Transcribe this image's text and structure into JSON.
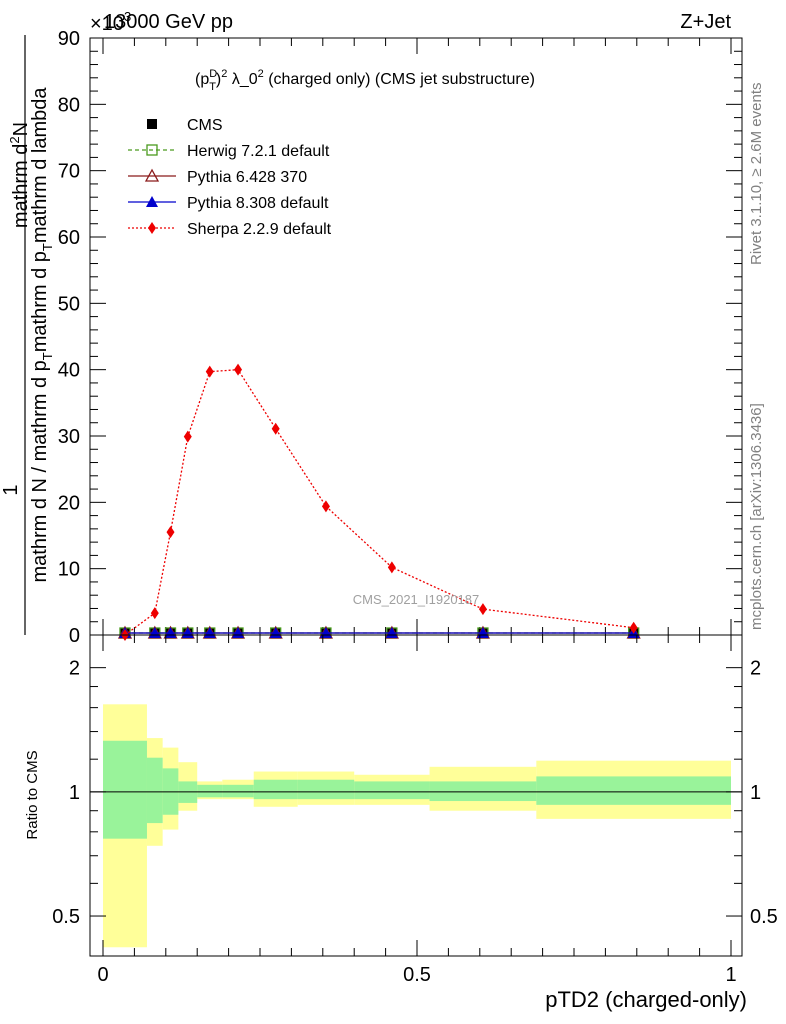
{
  "header": {
    "energy_label": "13000 GeV pp",
    "process_label": "Z+Jet",
    "exponent_label": "×10",
    "exponent_value": "3"
  },
  "main_panel": {
    "title_prefix": "(p",
    "title_sup_d": "D",
    "title_sub_t": "T",
    "title_suffix": ")",
    "title_power": "2",
    "title_rest": " λ_0",
    "title_power2": "2",
    "title_tail": " (charged only) (CMS jet substructure)",
    "ylabel_numerator_1": "1",
    "ylabel_denominator": "mathrm d N / mathrm d p",
    "ylabel_denominator_sub": "T",
    "ylabel_denominator_tail": "mathrm d p",
    "ylabel_denominator_sub2": "T",
    "ylabel_denominator_tail2": "mathrm d lambda",
    "ylabel_top": "mathrm d",
    "ylabel_top_sup": "2",
    "ylabel_top_tail": "N",
    "watermark": "CMS_2021_I1920187",
    "right_label_top": "Rivet 3.1.10, ≥ 2.6M events",
    "right_label_bottom": "mcplots.cern.ch [arXiv:1306.3436]"
  },
  "ratio_panel": {
    "ylabel": "Ratio to CMS"
  },
  "chart_data": {
    "type": "line",
    "xlabel": "pTD2 (charged-only)",
    "xlim": [
      0,
      1
    ],
    "xticks": [
      "0",
      "0.5",
      "1"
    ],
    "main": {
      "ylim": [
        0,
        90
      ],
      "yticks": [
        "0",
        "10",
        "20",
        "30",
        "40",
        "50",
        "60",
        "70",
        "80",
        "90"
      ],
      "y_multiplier": "×10^3"
    },
    "legend": {
      "placement": "top-left",
      "entries": [
        {
          "name": "CMS",
          "marker": "filled-square",
          "color": "#000000"
        },
        {
          "name": "Herwig 7.2.1 default",
          "marker": "open-square",
          "color": "#4a9a1e",
          "dash": "dashed"
        },
        {
          "name": "Pythia 6.428 370",
          "marker": "open-triangle",
          "color": "#8b1a1a",
          "dash": "solid"
        },
        {
          "name": "Pythia 8.308 default",
          "marker": "filled-triangle",
          "color": "#0000cc",
          "dash": "solid"
        },
        {
          "name": "Sherpa 2.2.9 default",
          "marker": "filled-diamond",
          "color": "#ee0000",
          "dash": "dotted"
        }
      ]
    },
    "bin_edges": [
      0.0,
      0.07,
      0.095,
      0.12,
      0.15,
      0.19,
      0.24,
      0.31,
      0.4,
      0.52,
      0.69,
      1.0
    ],
    "bin_centers": [
      0.035,
      0.0825,
      0.1075,
      0.135,
      0.17,
      0.215,
      0.275,
      0.355,
      0.46,
      0.605,
      0.845
    ],
    "series": [
      {
        "name": "CMS",
        "values": [
          0.3,
          0.3,
          0.3,
          0.3,
          0.3,
          0.3,
          0.3,
          0.3,
          0.3,
          0.3,
          0.3
        ]
      },
      {
        "name": "Herwig 7.2.1 default",
        "values": [
          0.3,
          0.3,
          0.3,
          0.3,
          0.3,
          0.3,
          0.3,
          0.3,
          0.3,
          0.3,
          0.3
        ]
      },
      {
        "name": "Pythia 6.428 370",
        "values": [
          0.3,
          0.3,
          0.3,
          0.3,
          0.3,
          0.3,
          0.3,
          0.3,
          0.3,
          0.3,
          0.3
        ]
      },
      {
        "name": "Pythia 8.308 default",
        "values": [
          0.3,
          0.3,
          0.3,
          0.3,
          0.3,
          0.3,
          0.3,
          0.3,
          0.3,
          0.3,
          0.3
        ]
      },
      {
        "name": "Sherpa 2.2.9 default",
        "values": [
          0.0,
          3.3,
          15.5,
          29.9,
          39.7,
          40.0,
          31.1,
          19.4,
          10.2,
          3.9,
          1.1
        ]
      }
    ],
    "ratio": {
      "scale": "log",
      "ylim": [
        0.4,
        2.4
      ],
      "yticks": [
        "0.5",
        "1",
        "2"
      ],
      "reference": 1.0,
      "inner_band": {
        "lower": [
          0.77,
          0.84,
          0.88,
          0.94,
          0.97,
          0.97,
          0.96,
          0.96,
          0.96,
          0.95,
          0.93
        ],
        "upper": [
          1.33,
          1.21,
          1.14,
          1.06,
          1.04,
          1.04,
          1.07,
          1.07,
          1.06,
          1.06,
          1.09
        ]
      },
      "outer_band": {
        "lower": [
          0.42,
          0.74,
          0.81,
          0.9,
          0.96,
          0.96,
          0.92,
          0.93,
          0.93,
          0.9,
          0.86
        ],
        "upper": [
          1.63,
          1.35,
          1.28,
          1.18,
          1.06,
          1.07,
          1.12,
          1.12,
          1.1,
          1.15,
          1.19
        ]
      },
      "band_colors": {
        "inner": "#99f39a",
        "outer": "#ffff99"
      }
    }
  }
}
